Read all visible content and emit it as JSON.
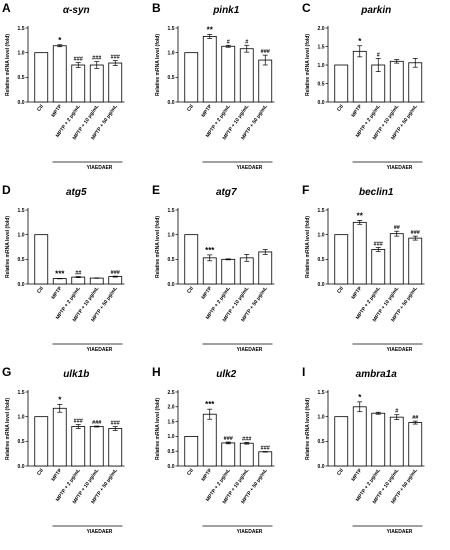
{
  "chart_data": [
    {
      "panel": "A",
      "title": "α-syn",
      "type": "bar",
      "ylabel": "Relative mRNA level (fold)",
      "ylim": [
        0,
        1.5
      ],
      "yticks": [
        0,
        0.5,
        1.0,
        1.5
      ],
      "yticklabels": [
        "0.0",
        "0.5",
        "1.0",
        "1.5"
      ],
      "categories": [
        "Ctl",
        "MPTP",
        "MPTP + 2 μg/mL",
        "MPTP + 10 μg/mL",
        "MPTP + 50 μg/mL"
      ],
      "values": [
        1.0,
        1.14,
        0.75,
        0.75,
        0.79
      ],
      "errors": [
        0,
        0.02,
        0.05,
        0.07,
        0.05
      ],
      "annotations": [
        "",
        "*",
        "###",
        "###",
        "###"
      ],
      "group_label": "YIAEDAER"
    },
    {
      "panel": "B",
      "title": "pink1",
      "type": "bar",
      "ylabel": "Relative mRNA level (fold)",
      "ylim": [
        0,
        1.5
      ],
      "yticks": [
        0,
        0.5,
        1.0,
        1.5
      ],
      "yticklabels": [
        "0.0",
        "0.5",
        "1.0",
        "1.5"
      ],
      "categories": [
        "Ctl",
        "MPTP",
        "MPTP + 2 μg/mL",
        "MPTP + 10 μg/mL",
        "MPTP + 50 μg/mL"
      ],
      "values": [
        1.0,
        1.33,
        1.13,
        1.08,
        0.85
      ],
      "errors": [
        0,
        0.04,
        0.02,
        0.07,
        0.1
      ],
      "annotations": [
        "",
        "**",
        "#",
        "#",
        "###"
      ],
      "group_label": "YIAEDAER"
    },
    {
      "panel": "C",
      "title": "parkin",
      "type": "bar",
      "ylabel": "Relative mRNA level (fold)",
      "ylim": [
        0,
        2.0
      ],
      "yticks": [
        0,
        0.5,
        1.0,
        1.5,
        2.0
      ],
      "yticklabels": [
        "0.0",
        "0.5",
        "1.0",
        "1.5",
        "2.0"
      ],
      "categories": [
        "Ctl",
        "MPTP",
        "MPTP + 2 μg/mL",
        "MPTP + 10 μg/mL",
        "MPTP + 50 μg/mL"
      ],
      "values": [
        1.0,
        1.37,
        1.0,
        1.1,
        1.06
      ],
      "errors": [
        0,
        0.15,
        0.18,
        0.05,
        0.12
      ],
      "annotations": [
        "",
        "*",
        "#",
        "",
        ""
      ],
      "group_label": "YIAEDAER"
    },
    {
      "panel": "D",
      "title": "atg5",
      "type": "bar",
      "ylabel": "Relative mRNA level (fold)",
      "ylim": [
        0,
        1.5
      ],
      "yticks": [
        0,
        0.5,
        1.0,
        1.5
      ],
      "yticklabels": [
        "0.0",
        "0.5",
        "1.0",
        "1.5"
      ],
      "categories": [
        "Ctl",
        "MPTP",
        "MPTP + 2 μg/mL",
        "MPTP + 10 μg/mL",
        "MPTP + 50 μg/mL"
      ],
      "values": [
        1.0,
        0.11,
        0.14,
        0.12,
        0.15
      ],
      "errors": [
        0,
        0.005,
        0.01,
        0.005,
        0.01
      ],
      "annotations": [
        "",
        "***",
        "##",
        "",
        "###"
      ],
      "group_label": "YIAEDAER"
    },
    {
      "panel": "E",
      "title": "atg7",
      "type": "bar",
      "ylabel": "Relative mRNA level (fold)",
      "ylim": [
        0,
        1.5
      ],
      "yticks": [
        0,
        0.5,
        1.0,
        1.5
      ],
      "yticklabels": [
        "0.0",
        "0.5",
        "1.0",
        "1.5"
      ],
      "categories": [
        "Ctl",
        "MPTP",
        "MPTP + 2 μg/mL",
        "MPTP + 10 μg/mL",
        "MPTP + 50 μg/mL"
      ],
      "values": [
        1.0,
        0.53,
        0.5,
        0.53,
        0.65
      ],
      "errors": [
        0,
        0.06,
        0.01,
        0.07,
        0.05
      ],
      "annotations": [
        "",
        "***",
        "",
        "",
        ""
      ],
      "group_label": "YIAEDAER"
    },
    {
      "panel": "F",
      "title": "beclin1",
      "type": "bar",
      "ylabel": "Relative mRNA level (fold)",
      "ylim": [
        0,
        1.5
      ],
      "yticks": [
        0,
        0.5,
        1.0,
        1.5
      ],
      "yticklabels": [
        "0.0",
        "0.5",
        "1.0",
        "1.5"
      ],
      "categories": [
        "Ctl",
        "MPTP",
        "MPTP + 2 μg/mL",
        "MPTP + 10 μg/mL",
        "MPTP + 50 μg/mL"
      ],
      "values": [
        1.0,
        1.25,
        0.7,
        1.02,
        0.93
      ],
      "errors": [
        0,
        0.04,
        0.04,
        0.05,
        0.04
      ],
      "annotations": [
        "",
        "**",
        "###",
        "##",
        "###"
      ],
      "group_label": "YIAEDAER"
    },
    {
      "panel": "G",
      "title": "ulk1b",
      "type": "bar",
      "ylabel": "Relative mRNA level (fold)",
      "ylim": [
        0,
        1.5
      ],
      "yticks": [
        0,
        0.5,
        1.0,
        1.5
      ],
      "yticklabels": [
        "0.0",
        "0.5",
        "1.0",
        "1.5"
      ],
      "categories": [
        "Ctl",
        "MPTP",
        "MPTP + 2 μg/mL",
        "MPTP + 10 μg/mL",
        "MPTP + 50 μg/mL"
      ],
      "values": [
        1.0,
        1.17,
        0.8,
        0.8,
        0.76
      ],
      "errors": [
        0,
        0.08,
        0.04,
        0.01,
        0.04
      ],
      "annotations": [
        "",
        "*",
        "###",
        "###",
        "###"
      ],
      "group_label": "YIAEDAER"
    },
    {
      "panel": "H",
      "title": "ulk2",
      "type": "bar",
      "ylabel": "Relative mRNA level (fold)",
      "ylim": [
        0,
        2.5
      ],
      "yticks": [
        0,
        0.5,
        1.0,
        1.5,
        2.0,
        2.5
      ],
      "yticklabels": [
        "0.0",
        "0.5",
        "1.0",
        "1.5",
        "2.0",
        "2.5"
      ],
      "categories": [
        "Ctl",
        "MPTP",
        "MPTP + 2 μg/mL",
        "MPTP + 10 μg/mL",
        "MPTP + 50 μg/mL"
      ],
      "values": [
        1.0,
        1.75,
        0.78,
        0.77,
        0.48
      ],
      "errors": [
        0,
        0.17,
        0.03,
        0.03,
        0.01
      ],
      "annotations": [
        "",
        "***",
        "###",
        "###",
        "###"
      ],
      "group_label": "YIAEDAER"
    },
    {
      "panel": "I",
      "title": "ambra1a",
      "type": "bar",
      "ylabel": "Relative mRNA level (fold)",
      "ylim": [
        0,
        1.5
      ],
      "yticks": [
        0,
        0.5,
        1.0,
        1.5
      ],
      "yticklabels": [
        "0.0",
        "0.5",
        "1.0",
        "1.5"
      ],
      "categories": [
        "Ctl",
        "MPTP",
        "MPTP + 2 μg/mL",
        "MPTP + 10 μg/mL",
        "MPTP + 50 μg/mL"
      ],
      "values": [
        1.0,
        1.2,
        1.07,
        0.99,
        0.88
      ],
      "errors": [
        0,
        0.1,
        0.02,
        0.05,
        0.03
      ],
      "annotations": [
        "",
        "*",
        "",
        "#",
        "##"
      ],
      "group_label": "YIAEDAER"
    }
  ]
}
